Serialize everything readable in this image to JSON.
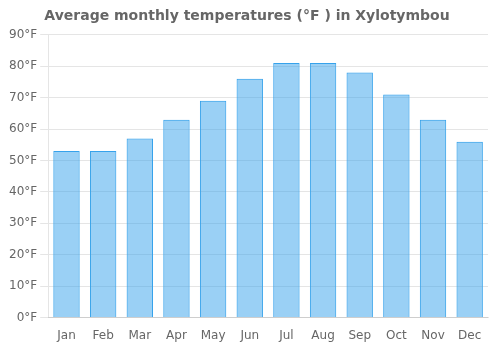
{
  "chart_data": {
    "type": "bar",
    "title": "Average monthly temperatures (°F ) in Xylotymbou",
    "categories": [
      "Jan",
      "Feb",
      "Mar",
      "Apr",
      "May",
      "Jun",
      "Jul",
      "Aug",
      "Sep",
      "Oct",
      "Nov",
      "Dec"
    ],
    "values": [
      53,
      53,
      57,
      63,
      69,
      76,
      81,
      81,
      78,
      71,
      63,
      56
    ],
    "ylim": [
      0,
      90
    ],
    "yticks": [
      {
        "value": 0,
        "label": "0°F"
      },
      {
        "value": 10,
        "label": "10°F"
      },
      {
        "value": 20,
        "label": "20°F"
      },
      {
        "value": 30,
        "label": "30°F"
      },
      {
        "value": 40,
        "label": "40°F"
      },
      {
        "value": 50,
        "label": "50°F"
      },
      {
        "value": 60,
        "label": "60°F"
      },
      {
        "value": 70,
        "label": "70°F"
      },
      {
        "value": 80,
        "label": "80°F"
      },
      {
        "value": 90,
        "label": "90°F"
      }
    ],
    "grid": true
  }
}
